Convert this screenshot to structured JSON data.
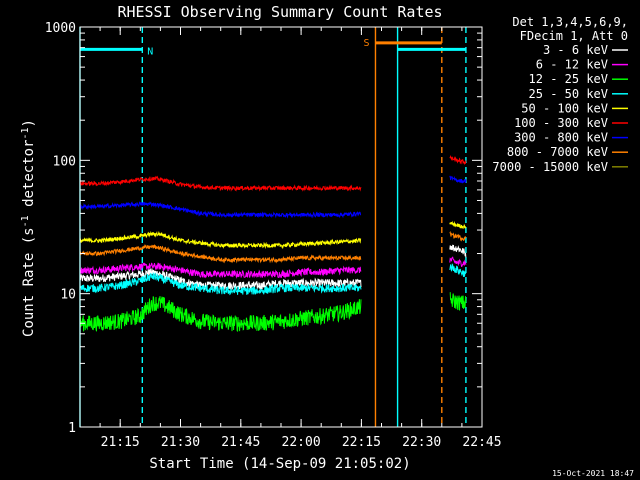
{
  "chart_data": {
    "type": "line",
    "title": "RHESSI Observing Summary Count Rates",
    "xlabel": "Start Time (14-Sep-09 21:05:02)",
    "ylabel_prefix": "Count Rate (s",
    "ylabel_sup1": "-1",
    "ylabel_mid": " detector",
    "ylabel_sup2": "-1",
    "ylabel_suffix": ")",
    "y_scale": "log",
    "ylim": [
      1,
      1000
    ],
    "xlim_minutes": [
      0,
      100
    ],
    "x_ticks": [
      {
        "label": "21:15",
        "value": 10
      },
      {
        "label": "21:30",
        "value": 25
      },
      {
        "label": "21:45",
        "value": 40
      },
      {
        "label": "22:00",
        "value": 55
      },
      {
        "label": "22:15",
        "value": 70
      },
      {
        "label": "22:30",
        "value": 85
      },
      {
        "label": "22:45",
        "value": 100
      }
    ],
    "y_ticks": [
      {
        "label": "1",
        "value": 1
      },
      {
        "label": "10",
        "value": 10
      },
      {
        "label": "100",
        "value": 100
      },
      {
        "label": "1000",
        "value": 1000
      }
    ],
    "legend_header": [
      "Det 1,3,4,5,6,9,",
      "FDecim 1, Att 0"
    ],
    "legend_placement": "right",
    "timestamp": "15-Oct-2021 18:47",
    "flags": [
      {
        "label": "N",
        "color": "#00ffff",
        "x_start": 0,
        "x_end": 15.5,
        "y": 680
      },
      {
        "label": "S",
        "color": "#ff8000",
        "x_start": 73.5,
        "x_end": 90,
        "y": 760
      },
      {
        "label": "",
        "color": "#00ffff",
        "x_start": 79,
        "x_end": 96,
        "y": 680
      }
    ],
    "vlines": [
      {
        "x": 0,
        "color": "#00ffff",
        "dashed": false
      },
      {
        "x": 15.5,
        "color": "#00ffff",
        "dashed": true
      },
      {
        "x": 73.5,
        "color": "#ff8000",
        "dashed": false
      },
      {
        "x": 79,
        "color": "#00ffff",
        "dashed": false
      },
      {
        "x": 90,
        "color": "#ff8000",
        "dashed": true
      },
      {
        "x": 96,
        "color": "#00ffff",
        "dashed": true
      }
    ],
    "x": [
      0,
      5,
      10,
      15,
      18,
      20,
      25,
      30,
      35,
      40,
      45,
      50,
      55,
      60,
      65,
      70,
      92,
      93,
      94,
      95,
      96
    ],
    "series": [
      {
        "name": "3 - 6 keV",
        "color": "#ffffff",
        "values": [
          13,
          13,
          13.5,
          14,
          14.5,
          14,
          12.5,
          11.5,
          11.5,
          11.5,
          11.5,
          12,
          12,
          12,
          12,
          12,
          23,
          22,
          22,
          21,
          20
        ]
      },
      {
        "name": "6 - 12 keV",
        "color": "#ff00ff",
        "values": [
          15,
          15,
          15.5,
          16,
          16,
          16,
          15,
          14,
          14,
          14,
          14,
          14,
          14.5,
          14.5,
          15,
          15,
          18,
          17.5,
          17,
          17,
          17
        ]
      },
      {
        "name": "12 - 25 keV",
        "color": "#00ff00",
        "values": [
          6,
          6,
          6.2,
          6.8,
          8.5,
          8.5,
          7,
          6.2,
          6,
          6,
          6,
          6.2,
          6.5,
          6.8,
          7.2,
          8,
          9,
          8.8,
          8.6,
          8.5,
          8.5
        ]
      },
      {
        "name": "25 - 50 keV",
        "color": "#00ffff",
        "values": [
          11,
          11,
          11.5,
          12.5,
          13.5,
          13,
          11.5,
          11,
          10.5,
          10.5,
          10.5,
          11,
          11,
          11,
          11,
          11,
          16,
          15.5,
          15,
          14.5,
          14
        ]
      },
      {
        "name": "50 - 100 keV",
        "color": "#ffff00",
        "values": [
          25,
          25,
          26,
          27,
          28,
          28,
          25,
          24,
          23,
          23,
          23,
          23,
          23.5,
          24,
          24.5,
          25,
          34,
          33,
          32.5,
          32,
          32
        ]
      },
      {
        "name": "100 - 300 keV",
        "color": "#ff0000",
        "values": [
          67,
          67,
          69,
          72,
          73,
          72,
          66,
          63,
          62,
          62,
          62,
          62,
          62,
          62,
          62,
          62,
          105,
          102,
          100,
          98,
          97
        ]
      },
      {
        "name": "300 - 800 keV",
        "color": "#0000ff",
        "values": [
          45,
          45,
          46,
          47,
          47,
          46,
          43,
          40,
          39,
          39,
          39,
          39,
          39,
          39,
          39,
          40,
          74,
          72,
          71,
          70,
          70
        ]
      },
      {
        "name": "800 - 7000 keV",
        "color": "#ff8000",
        "values": [
          20,
          20,
          21,
          22,
          22.5,
          22,
          20,
          19,
          18,
          18,
          18,
          18,
          18.5,
          18.5,
          18.5,
          18.5,
          28,
          27,
          27,
          26,
          26
        ]
      },
      {
        "name": "7000 - 15000 keV",
        "color": "#808000",
        "values": [
          null,
          null,
          null,
          null,
          null,
          null,
          null,
          null,
          null,
          null,
          null,
          null,
          null,
          null,
          null,
          null,
          null,
          null,
          null,
          null,
          null
        ]
      }
    ]
  }
}
